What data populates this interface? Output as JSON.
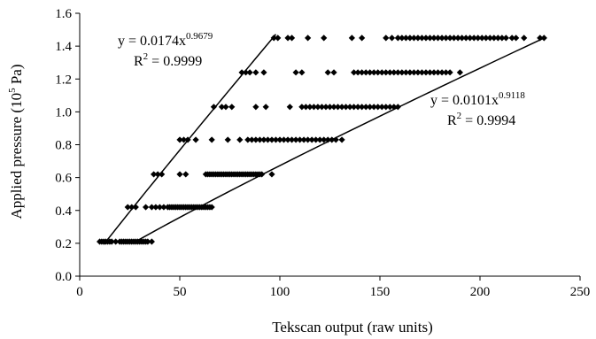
{
  "chart_data": {
    "type": "scatter",
    "xlabel": "Tekscan output (raw units)",
    "ylabel_main": "Applied pressure (10",
    "ylabel_exp": "5",
    "ylabel_unit": " Pa)",
    "xlim": [
      0,
      250
    ],
    "ylim": [
      0,
      1.6
    ],
    "xticks": [
      0,
      50,
      100,
      150,
      200,
      250
    ],
    "xtick_labels": [
      "0",
      "50",
      "100",
      "150",
      "200",
      "250"
    ],
    "yticks": [
      0,
      0.2,
      0.4,
      0.6,
      0.8,
      1.0,
      1.2,
      1.4,
      1.6
    ],
    "ytick_labels": [
      "0.0",
      "0.2",
      "0.4",
      "0.6",
      "0.8",
      "1.0",
      "1.2",
      "1.4",
      "1.6"
    ],
    "grid": false,
    "marker_color": "#000000",
    "points": [
      {
        "y": 0.21,
        "x": [
          10,
          11,
          12,
          13,
          14,
          15,
          16,
          18,
          20,
          21,
          22,
          23,
          24,
          25,
          26,
          27,
          28,
          29,
          30,
          31,
          32,
          33,
          34,
          36
        ]
      },
      {
        "y": 0.42,
        "x": [
          24,
          26,
          28,
          33,
          36,
          38,
          40,
          42,
          44,
          45,
          46,
          47,
          48,
          49,
          50,
          51,
          52,
          53,
          54,
          55,
          56,
          57,
          58,
          59,
          60,
          61,
          62,
          63,
          64,
          65,
          66
        ]
      },
      {
        "y": 0.62,
        "x": [
          37,
          39,
          41,
          50,
          53,
          63,
          64,
          65,
          66,
          67,
          68,
          69,
          70,
          71,
          72,
          73,
          74,
          75,
          76,
          77,
          78,
          79,
          80,
          81,
          82,
          83,
          84,
          85,
          86,
          87,
          88,
          89,
          90,
          91,
          96
        ]
      },
      {
        "y": 0.83,
        "x": [
          50,
          52,
          54,
          58,
          66,
          74,
          80,
          84,
          86,
          88,
          90,
          92,
          94,
          96,
          98,
          100,
          102,
          104,
          106,
          108,
          110,
          112,
          114,
          116,
          118,
          120,
          122,
          124,
          126,
          128,
          131
        ]
      },
      {
        "y": 1.03,
        "x": [
          67,
          71,
          73,
          76,
          88,
          93,
          105,
          111,
          113,
          115,
          117,
          119,
          121,
          123,
          125,
          127,
          129,
          131,
          133,
          135,
          137,
          139,
          141,
          143,
          145,
          147,
          149,
          151,
          153,
          155,
          157,
          159
        ]
      },
      {
        "y": 1.24,
        "x": [
          81,
          83,
          85,
          88,
          92,
          108,
          111,
          124,
          127,
          137,
          139,
          141,
          143,
          145,
          147,
          149,
          151,
          153,
          155,
          157,
          159,
          161,
          163,
          165,
          167,
          169,
          171,
          173,
          175,
          177,
          179,
          181,
          183,
          185,
          190
        ]
      },
      {
        "y": 1.45,
        "x": [
          97,
          99,
          104,
          106,
          114,
          122,
          136,
          141,
          153,
          156,
          159,
          161,
          163,
          165,
          167,
          169,
          171,
          173,
          175,
          177,
          179,
          181,
          183,
          185,
          187,
          189,
          191,
          193,
          195,
          197,
          199,
          201,
          203,
          205,
          207,
          209,
          211,
          213,
          216,
          218,
          222,
          230,
          232
        ]
      }
    ],
    "fits": [
      {
        "a": 0.0174,
        "b": 0.9679,
        "x_start": 12,
        "x_end": 98
      },
      {
        "a": 0.0101,
        "b": 0.9118,
        "x_start": 28,
        "x_end": 232
      }
    ],
    "annotations": [
      {
        "eq_prefix": "y = 0.0174x",
        "eq_exp": "0.9679",
        "r2_prefix": "R",
        "r2_exp": "2",
        "r2_value": " = 0.9999"
      },
      {
        "eq_prefix": "y = 0.0101x",
        "eq_exp": "0.9118",
        "r2_prefix": "R",
        "r2_exp": "2",
        "r2_value": " = 0.9994"
      }
    ]
  }
}
